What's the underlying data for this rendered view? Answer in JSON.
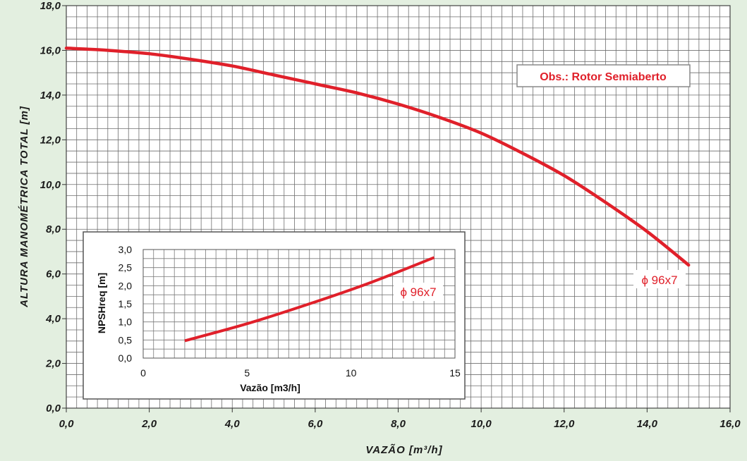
{
  "chart_data": [
    {
      "type": "line",
      "xlabel": "VAZÃO [m³/h]",
      "ylabel": "ALTURA MANOMÉTRICA TOTAL [m]",
      "xlim": [
        0,
        16
      ],
      "ylim": [
        0,
        18
      ],
      "x_ticks": [
        "0,0",
        "2,0",
        "4,0",
        "6,0",
        "8,0",
        "10,0",
        "12,0",
        "14,0",
        "16,0"
      ],
      "y_ticks": [
        "0,0",
        "2,0",
        "4,0",
        "6,0",
        "8,0",
        "10,0",
        "12,0",
        "14,0",
        "16,0",
        "18,0"
      ],
      "grid": true,
      "series": [
        {
          "name": "ϕ 96x7",
          "color": "#e0202a",
          "x": [
            0,
            1,
            2,
            3,
            4,
            5,
            6,
            7,
            8,
            9,
            10,
            11,
            12,
            13,
            14,
            15
          ],
          "y": [
            16.1,
            16.0,
            15.85,
            15.6,
            15.3,
            14.9,
            14.5,
            14.1,
            13.6,
            13.0,
            12.3,
            11.4,
            10.4,
            9.2,
            7.9,
            6.4
          ]
        }
      ],
      "annotations": [
        "Obs.: Rotor Semiaberto"
      ]
    },
    {
      "type": "line",
      "xlabel": "Vazão [m3/h]",
      "ylabel": "NPSHreq [m]",
      "xlim": [
        0,
        15
      ],
      "ylim": [
        0,
        3
      ],
      "x_ticks": [
        "0",
        "5",
        "10",
        "15"
      ],
      "y_ticks": [
        "0,0",
        "0,5",
        "1,0",
        "1,5",
        "2,0",
        "2,5",
        "3,0"
      ],
      "grid": true,
      "series": [
        {
          "name": "ϕ 96x7",
          "color": "#e0202a",
          "x": [
            2,
            5,
            8,
            11,
            14
          ],
          "y": [
            0.48,
            0.95,
            1.5,
            2.1,
            2.78
          ]
        }
      ]
    }
  ]
}
